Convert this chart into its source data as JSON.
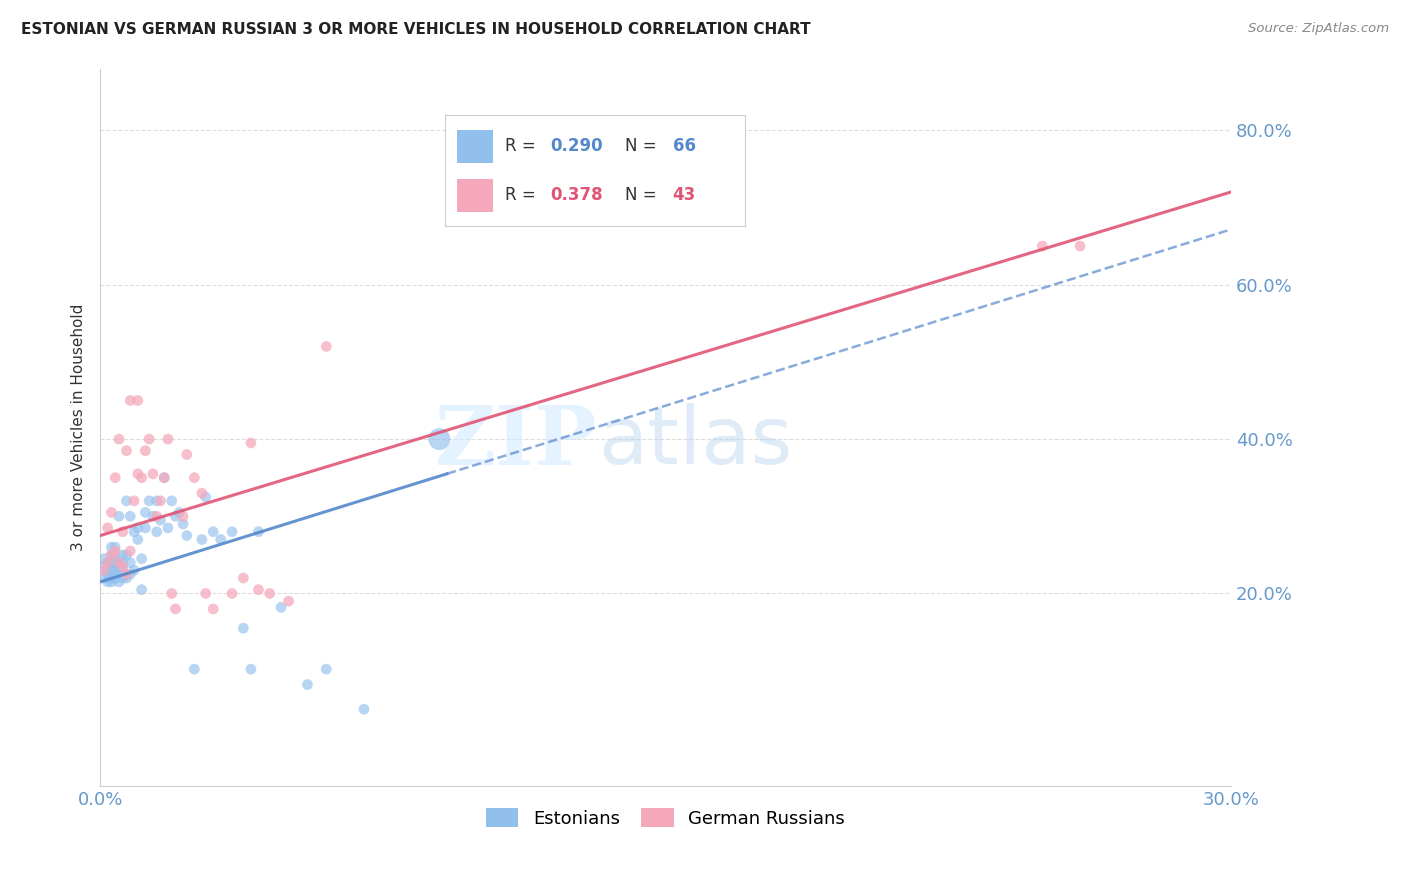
{
  "title": "ESTONIAN VS GERMAN RUSSIAN 3 OR MORE VEHICLES IN HOUSEHOLD CORRELATION CHART",
  "source": "Source: ZipAtlas.com",
  "ylabel": "3 or more Vehicles in Household",
  "xlim": [
    0.0,
    0.3
  ],
  "ylim": [
    -0.05,
    0.88
  ],
  "yticks": [
    0.2,
    0.4,
    0.6,
    0.8
  ],
  "xticks": [
    0.0,
    0.05,
    0.1,
    0.15,
    0.2,
    0.25,
    0.3
  ],
  "legend_blue_r": "0.290",
  "legend_blue_n": "66",
  "legend_pink_r": "0.378",
  "legend_pink_n": "43",
  "blue_color": "#92C0ED",
  "pink_color": "#F5A8BC",
  "line_blue_color": "#5588CC",
  "line_pink_color": "#E05575",
  "grid_color": "#DDDDDD",
  "tick_color": "#6699CC",
  "title_color": "#222222",
  "estonians_x": [
    0.001,
    0.001,
    0.001,
    0.002,
    0.002,
    0.002,
    0.002,
    0.003,
    0.003,
    0.003,
    0.003,
    0.003,
    0.003,
    0.004,
    0.004,
    0.004,
    0.004,
    0.004,
    0.005,
    0.005,
    0.005,
    0.005,
    0.006,
    0.006,
    0.006,
    0.006,
    0.007,
    0.007,
    0.007,
    0.008,
    0.008,
    0.008,
    0.009,
    0.009,
    0.01,
    0.01,
    0.011,
    0.011,
    0.012,
    0.012,
    0.013,
    0.014,
    0.015,
    0.015,
    0.016,
    0.017,
    0.018,
    0.019,
    0.02,
    0.021,
    0.022,
    0.023,
    0.025,
    0.027,
    0.028,
    0.03,
    0.032,
    0.035,
    0.038,
    0.04,
    0.042,
    0.048,
    0.055,
    0.06,
    0.07,
    0.09
  ],
  "estonians_y": [
    0.245,
    0.235,
    0.22,
    0.24,
    0.23,
    0.225,
    0.215,
    0.23,
    0.24,
    0.25,
    0.22,
    0.215,
    0.26,
    0.22,
    0.23,
    0.24,
    0.25,
    0.26,
    0.215,
    0.23,
    0.24,
    0.3,
    0.22,
    0.23,
    0.24,
    0.25,
    0.22,
    0.25,
    0.32,
    0.225,
    0.24,
    0.3,
    0.23,
    0.28,
    0.27,
    0.285,
    0.205,
    0.245,
    0.285,
    0.305,
    0.32,
    0.3,
    0.28,
    0.32,
    0.295,
    0.35,
    0.285,
    0.32,
    0.3,
    0.305,
    0.29,
    0.275,
    0.102,
    0.27,
    0.325,
    0.28,
    0.27,
    0.28,
    0.155,
    0.102,
    0.28,
    0.182,
    0.082,
    0.102,
    0.05,
    0.4
  ],
  "estonians_size": [
    60,
    60,
    60,
    60,
    60,
    60,
    60,
    60,
    60,
    60,
    60,
    60,
    60,
    60,
    60,
    60,
    60,
    60,
    60,
    60,
    60,
    60,
    60,
    60,
    60,
    60,
    60,
    60,
    60,
    60,
    60,
    60,
    60,
    60,
    60,
    60,
    60,
    60,
    60,
    60,
    60,
    60,
    60,
    60,
    60,
    60,
    60,
    60,
    60,
    60,
    60,
    60,
    60,
    60,
    60,
    60,
    60,
    60,
    60,
    60,
    60,
    60,
    60,
    60,
    60,
    250
  ],
  "german_x": [
    0.001,
    0.002,
    0.002,
    0.003,
    0.003,
    0.004,
    0.004,
    0.005,
    0.005,
    0.006,
    0.006,
    0.007,
    0.007,
    0.008,
    0.008,
    0.009,
    0.01,
    0.01,
    0.011,
    0.012,
    0.013,
    0.014,
    0.015,
    0.016,
    0.017,
    0.018,
    0.019,
    0.02,
    0.022,
    0.023,
    0.025,
    0.027,
    0.028,
    0.03,
    0.035,
    0.038,
    0.04,
    0.042,
    0.045,
    0.05,
    0.06,
    0.25,
    0.26
  ],
  "german_y": [
    0.23,
    0.24,
    0.285,
    0.25,
    0.305,
    0.255,
    0.35,
    0.24,
    0.4,
    0.235,
    0.28,
    0.225,
    0.385,
    0.255,
    0.45,
    0.32,
    0.355,
    0.45,
    0.35,
    0.385,
    0.4,
    0.355,
    0.3,
    0.32,
    0.35,
    0.4,
    0.2,
    0.18,
    0.3,
    0.38,
    0.35,
    0.33,
    0.2,
    0.18,
    0.2,
    0.22,
    0.395,
    0.205,
    0.2,
    0.19,
    0.52,
    0.65,
    0.65
  ],
  "german_size": [
    60,
    60,
    60,
    60,
    60,
    60,
    60,
    60,
    60,
    60,
    60,
    60,
    60,
    60,
    60,
    60,
    60,
    60,
    60,
    60,
    60,
    60,
    60,
    60,
    60,
    60,
    60,
    60,
    60,
    60,
    60,
    60,
    60,
    60,
    60,
    60,
    60,
    60,
    60,
    60,
    60,
    60,
    60
  ],
  "line_blue_x0": 0.0,
  "line_blue_y0": 0.215,
  "line_blue_x1": 0.092,
  "line_blue_y1": 0.355,
  "line_pink_x0": 0.0,
  "line_pink_y0": 0.275,
  "line_pink_x1": 0.3,
  "line_pink_y1": 0.72
}
